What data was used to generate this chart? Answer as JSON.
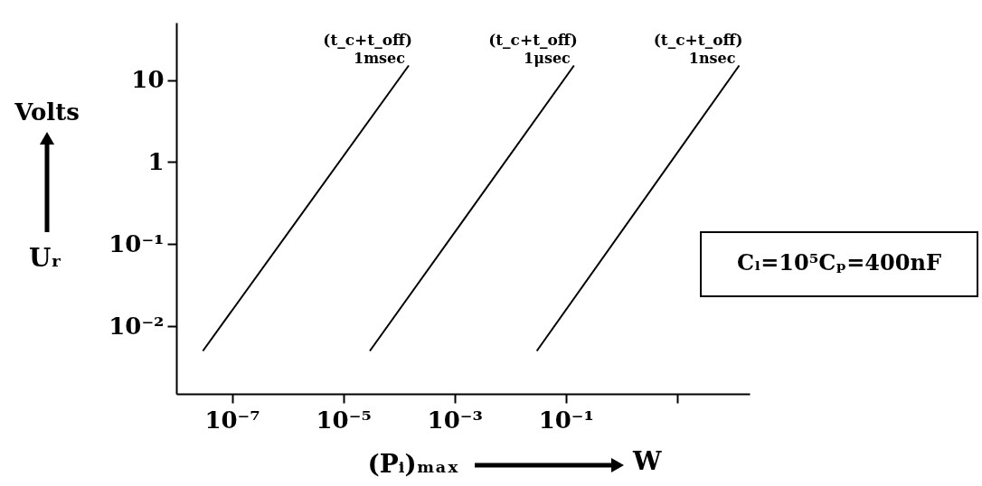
{
  "chart_data": {
    "type": "line",
    "xlabel": "(Pᵢ)ₘₐₓ",
    "ylabel": "Uᵣ",
    "log": "xy",
    "grid": false,
    "marker": "none",
    "line_style": "solid",
    "xlim": [
      1e-08,
      200
    ],
    "ylim": [
      0.0015,
      50
    ],
    "xticks": [
      {
        "value": 1e-07,
        "label": "10⁻⁷"
      },
      {
        "value": 1e-05,
        "label": "10⁻⁵"
      },
      {
        "value": 0.001,
        "label": "10⁻³"
      },
      {
        "value": 0.1,
        "label": "10⁻¹"
      },
      {
        "value": 10,
        "label": null
      }
    ],
    "yticks": [
      {
        "value": 0.01,
        "label": "10⁻²"
      },
      {
        "value": 0.1,
        "label": "10⁻¹"
      },
      1,
      10
    ],
    "series": [
      {
        "name": "1msec",
        "color": "#000000",
        "x": [
          3e-08,
          0.00015
        ],
        "values": [
          0.005,
          15
        ]
      },
      {
        "name": "1μsec",
        "color": "#000000",
        "x": [
          3e-05,
          0.14
        ],
        "values": [
          0.005,
          15
        ]
      },
      {
        "name": "1nsec",
        "color": "#000000",
        "x": [
          0.03,
          130
        ],
        "values": [
          0.005,
          15
        ]
      }
    ],
    "annotations": [
      {
        "text": "(t_c+t_off)",
        "x": 0.00015,
        "y": 15
      },
      {
        "text": "(t_c+t_off)",
        "x": 0.14,
        "y": 15
      },
      {
        "text": "(t_c+t_off)",
        "x": 130,
        "y": 15
      },
      "Volts",
      "W",
      "Cₗ=10⁵Cₚ=400nF"
    ]
  }
}
